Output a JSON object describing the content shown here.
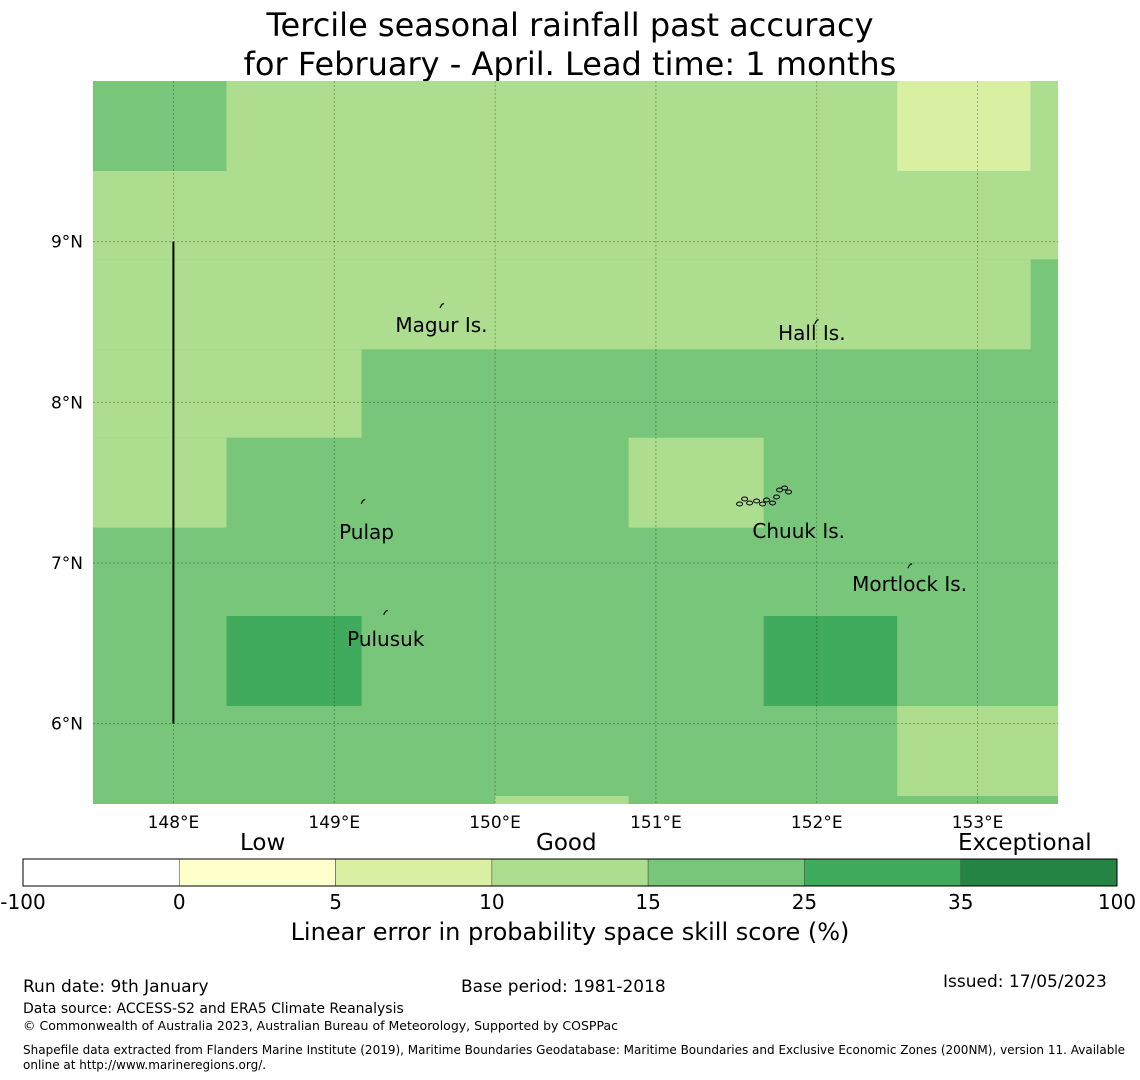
{
  "title": {
    "line1": "Tercile seasonal rainfall past accuracy",
    "line2": "for February - April. Lead time: 1 months"
  },
  "map": {
    "lon_range": [
      147.5,
      153.5
    ],
    "lat_range": [
      5.5,
      10.0
    ],
    "lon_ticks": [
      {
        "value": 148,
        "label": "148°E"
      },
      {
        "value": 149,
        "label": "149°E"
      },
      {
        "value": 150,
        "label": "150°E"
      },
      {
        "value": 151,
        "label": "151°E"
      },
      {
        "value": 152,
        "label": "152°E"
      },
      {
        "value": 153,
        "label": "153°E"
      }
    ],
    "lat_ticks": [
      {
        "value": 9,
        "label": "9°N"
      },
      {
        "value": 8,
        "label": "8°N"
      },
      {
        "value": 7,
        "label": "7°N"
      },
      {
        "value": 6,
        "label": "6°N"
      }
    ],
    "grid_cells": [
      {
        "lon0": 147.5,
        "lon1": 153.5,
        "lat0": 5.5,
        "lat1": 10.0,
        "level": 4
      },
      {
        "lon0": 147.5,
        "lon1": 148.33,
        "lat0": 9.44,
        "lat1": 10.0,
        "level": 4
      },
      {
        "lon0": 148.33,
        "lon1": 152.5,
        "lat0": 9.44,
        "lat1": 10.0,
        "level": 3
      },
      {
        "lon0": 152.5,
        "lon1": 153.33,
        "lat0": 9.44,
        "lat1": 10.0,
        "level": 2
      },
      {
        "lon0": 153.33,
        "lon1": 153.5,
        "lat0": 9.44,
        "lat1": 10.0,
        "level": 3
      },
      {
        "lon0": 147.5,
        "lon1": 153.5,
        "lat0": 8.89,
        "lat1": 9.44,
        "level": 3
      },
      {
        "lon0": 147.5,
        "lon1": 153.33,
        "lat0": 8.33,
        "lat1": 8.89,
        "level": 3
      },
      {
        "lon0": 147.5,
        "lon1": 149.17,
        "lat0": 7.78,
        "lat1": 8.33,
        "level": 3
      },
      {
        "lon0": 147.5,
        "lon1": 148.33,
        "lat0": 7.22,
        "lat1": 7.78,
        "level": 3
      },
      {
        "lon0": 150.83,
        "lon1": 151.67,
        "lat0": 7.22,
        "lat1": 7.78,
        "level": 3
      },
      {
        "lon0": 148.33,
        "lon1": 149.17,
        "lat0": 6.11,
        "lat1": 6.67,
        "level": 5
      },
      {
        "lon0": 151.67,
        "lon1": 152.5,
        "lat0": 6.11,
        "lat1": 6.67,
        "level": 5
      },
      {
        "lon0": 152.5,
        "lon1": 153.5,
        "lat0": 5.55,
        "lat1": 6.11,
        "level": 3
      },
      {
        "lon0": 150.0,
        "lon1": 150.83,
        "lat0": 5.5,
        "lat1": 5.55,
        "level": 3
      }
    ],
    "boundary_line": {
      "lon": 148.0,
      "lat_from": 6.0,
      "lat_to": 9.0
    },
    "islands": [
      {
        "name": "Magur Is.",
        "lon": 149.67,
        "lat": 8.6,
        "label_lon": 149.38,
        "label_lat": 8.48
      },
      {
        "name": "Hall Is.",
        "lon": 152.0,
        "lat": 8.5,
        "label_lon": 151.76,
        "label_lat": 8.43
      },
      {
        "name": "Pulap",
        "lon": 149.18,
        "lat": 7.38,
        "label_lon": 149.03,
        "label_lat": 7.19
      },
      {
        "name": "Chuuk Is.",
        "lon": 151.8,
        "lat": 7.38,
        "label_lon": 151.6,
        "label_lat": 7.2
      },
      {
        "name": "Mortlock Is.",
        "lon": 152.58,
        "lat": 6.98,
        "label_lon": 152.22,
        "label_lat": 6.87
      },
      {
        "name": "Pulusuk",
        "lon": 149.32,
        "lat": 6.69,
        "label_lon": 149.08,
        "label_lat": 6.53
      }
    ]
  },
  "colorbar": {
    "categories": {
      "low": "Low",
      "good": "Good",
      "exceptional": "Exceptional"
    },
    "levels": [
      {
        "from": "-100",
        "to": "0",
        "color": "#ffffff"
      },
      {
        "from": "0",
        "to": "5",
        "color": "#ffffcc"
      },
      {
        "from": "5",
        "to": "10",
        "color": "#d9f0a3"
      },
      {
        "from": "10",
        "to": "15",
        "color": "#addd8e"
      },
      {
        "from": "15",
        "to": "25",
        "color": "#78c679"
      },
      {
        "from": "25",
        "to": "35",
        "color": "#41ab5d"
      },
      {
        "from": "35",
        "to": "100",
        "color": "#238443"
      }
    ],
    "tick_labels": [
      "-100",
      "0",
      "5",
      "10",
      "15",
      "25",
      "35",
      "100"
    ],
    "title": "Linear error in probability space skill score (%)"
  },
  "footer": {
    "run_date": "Run date: 9th January",
    "base_period": "Base period: 1981-2018",
    "issued": "Issued: 17/05/2023",
    "data_source": "Data source: ACCESS-S2 and ERA5 Climate Reanalysis",
    "copyright": "© Commonwealth of Australia 2023, Australian Bureau of Meteorology, Supported by COSPPac",
    "shapefile_line1": "Shapefile data extracted from Flanders Marine Institute (2019), Maritime Boundaries Geodatabase: Maritime Boundaries and Exclusive Economic Zones (200NM), version 11. Available",
    "shapefile_line2": "online at http://www.marineregions.org/."
  }
}
